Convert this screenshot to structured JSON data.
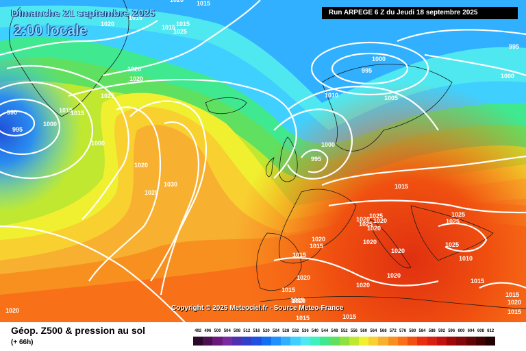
{
  "header": {
    "date": "Dimanche 21 septembre 2025",
    "time": "2:00 locale",
    "run": "Run ARPEGE 6 Z du Jeudi 18 septembre 2025"
  },
  "copyright": "Copyright © 2025 Meteociel.fr - Source Meteo-France",
  "legend": {
    "title": "Géop. Z500 & pression au sol",
    "subtitle": "(+ 66h)",
    "scale_values": [
      "492",
      "496",
      "500",
      "504",
      "508",
      "512",
      "516",
      "520",
      "524",
      "528",
      "532",
      "536",
      "540",
      "544",
      "548",
      "552",
      "556",
      "560",
      "564",
      "568",
      "572",
      "576",
      "580",
      "584",
      "588",
      "592",
      "596",
      "600",
      "604",
      "608",
      "612"
    ],
    "scale_colors": [
      "#2a0a2a",
      "#4a1050",
      "#6a1a7a",
      "#7a2aa0",
      "#5030b0",
      "#3040c8",
      "#2050e0",
      "#1070f0",
      "#2090ff",
      "#30b0ff",
      "#40d0ff",
      "#50e8f0",
      "#40f0c0",
      "#40e890",
      "#60e060",
      "#90e040",
      "#c0e830",
      "#f0f030",
      "#f8d030",
      "#f8b030",
      "#f89020",
      "#f87018",
      "#f05010",
      "#e83010",
      "#d82010",
      "#c01010",
      "#a00808",
      "#800808",
      "#600404",
      "#400202",
      "#200000"
    ]
  },
  "pressure_labels": [
    {
      "text": "1020"
    },
    {
      "text": "1015"
    },
    {
      "text": "1015"
    },
    {
      "text": "1015"
    },
    {
      "text": "1020"
    },
    {
      "text": "1015"
    },
    {
      "text": "1025"
    },
    {
      "text": "1020"
    },
    {
      "text": "1020"
    },
    {
      "text": "1025"
    },
    {
      "text": "990"
    },
    {
      "text": "995"
    },
    {
      "text": "1000"
    },
    {
      "text": "1015"
    },
    {
      "text": "1015"
    },
    {
      "text": "1000"
    },
    {
      "text": "1020"
    },
    {
      "text": "1030"
    },
    {
      "text": "1025"
    },
    {
      "text": "1000"
    },
    {
      "text": "995"
    },
    {
      "text": "1010"
    },
    {
      "text": "1005"
    },
    {
      "text": "995"
    },
    {
      "text": "1000"
    },
    {
      "text": "995"
    },
    {
      "text": "1000"
    },
    {
      "text": "1015"
    },
    {
      "text": "1025"
    },
    {
      "text": "1020"
    },
    {
      "text": "1025"
    },
    {
      "text": "1020"
    },
    {
      "text": "1020"
    },
    {
      "text": "1025"
    },
    {
      "text": "1025"
    },
    {
      "text": "1025"
    },
    {
      "text": "1020"
    },
    {
      "text": "1020"
    },
    {
      "text": "1015"
    },
    {
      "text": "1015"
    },
    {
      "text": "1020"
    },
    {
      "text": "1020"
    },
    {
      "text": "1020"
    },
    {
      "text": "1015"
    },
    {
      "text": "1015"
    },
    {
      "text": "1020"
    },
    {
      "text": "1020"
    },
    {
      "text": "1015"
    },
    {
      "text": "1015"
    },
    {
      "text": "1015"
    },
    {
      "text": "1015"
    },
    {
      "text": "1020"
    },
    {
      "text": "1020"
    },
    {
      "text": "1015"
    },
    {
      "text": "1010"
    }
  ]
}
